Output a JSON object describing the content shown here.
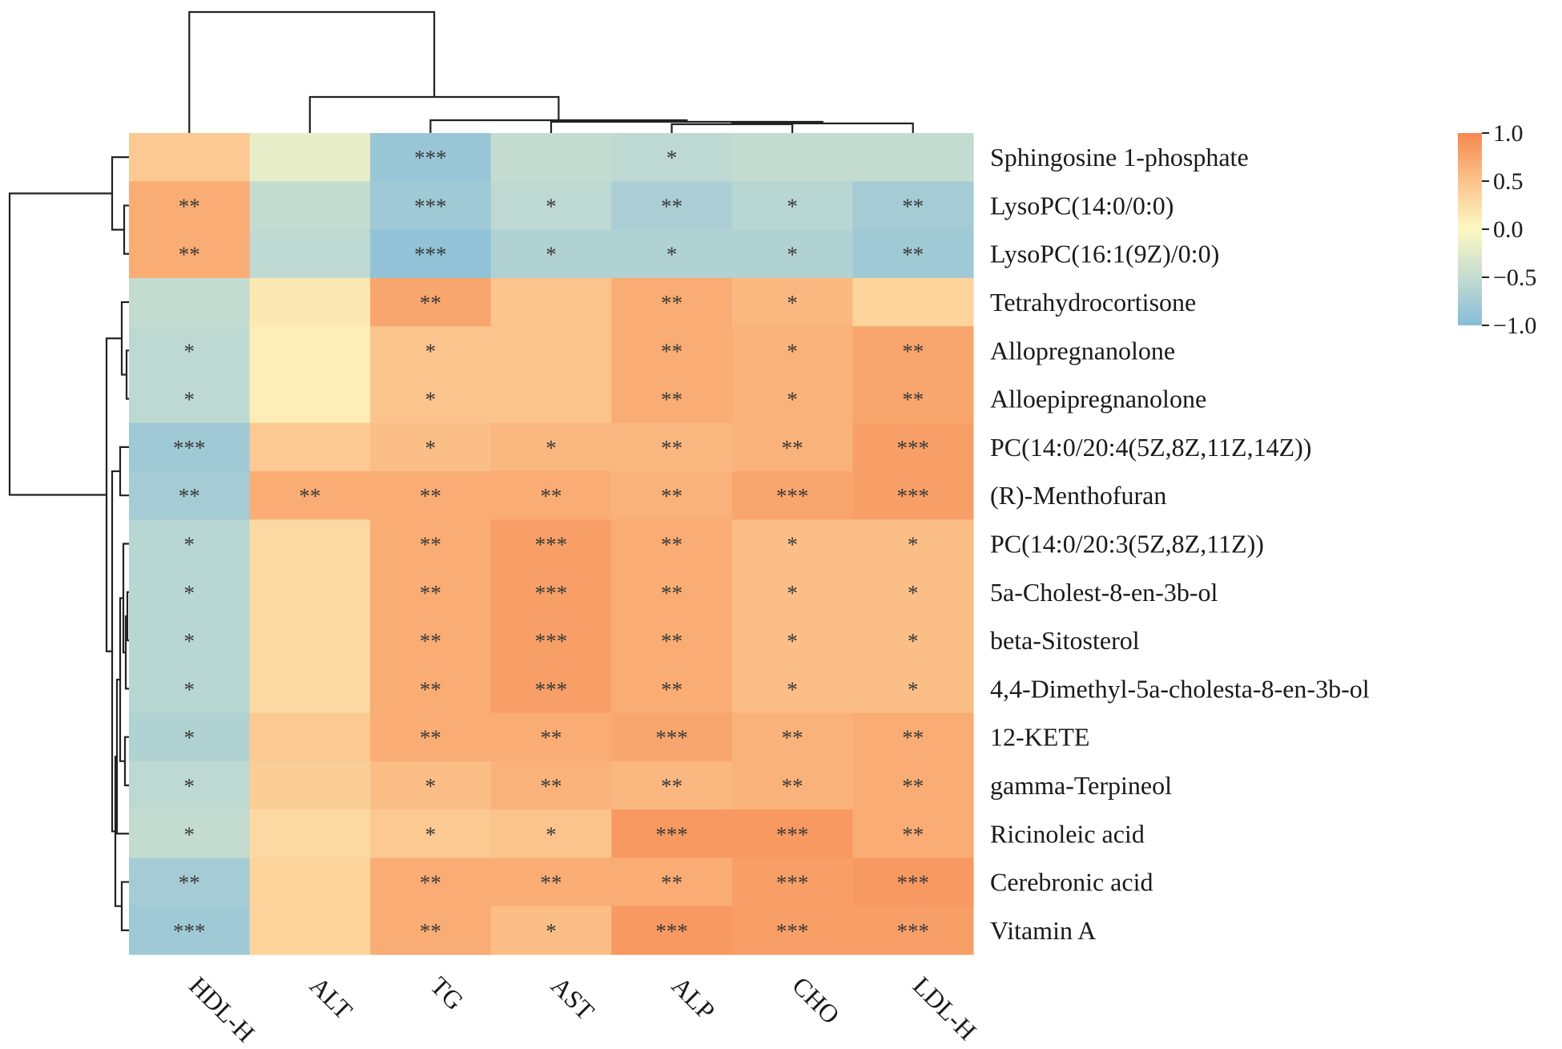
{
  "chart_data": {
    "type": "heatmap",
    "title": "",
    "columns": [
      "HDL-H",
      "ALT",
      "TG",
      "AST",
      "ALP",
      "CHO",
      "LDL-H"
    ],
    "rows": [
      "Sphingosine 1-phosphate",
      "LysoPC(14:0/0:0)",
      "LysoPC(16:1(9Z)/0:0)",
      "Tetrahydrocortisone",
      "Allopregnanolone",
      "Alloepipregnanolone",
      "PC(14:0/20:4(5Z,8Z,11Z,14Z))",
      "(R)-Menthofuran",
      "PC(14:0/20:3(5Z,8Z,11Z))",
      "5a-Cholest-8-en-3b-ol",
      "beta-Sitosterol",
      "4,4-Dimethyl-5a-cholesta-8-en-3b-ol",
      "12-KETE",
      "gamma-Terpineol",
      "Ricinoleic acid",
      "Cerebronic acid",
      "Vitamin A"
    ],
    "values": [
      [
        0.45,
        -0.2,
        -0.85,
        -0.5,
        -0.55,
        -0.5,
        -0.5
      ],
      [
        0.7,
        -0.5,
        -0.8,
        -0.55,
        -0.7,
        -0.6,
        -0.75
      ],
      [
        0.7,
        -0.55,
        -0.9,
        -0.65,
        -0.65,
        -0.65,
        -0.8
      ],
      [
        -0.5,
        0.15,
        0.75,
        0.5,
        0.7,
        0.6,
        0.35
      ],
      [
        -0.55,
        0.1,
        0.5,
        0.5,
        0.7,
        0.65,
        0.75
      ],
      [
        -0.55,
        0.1,
        0.5,
        0.5,
        0.7,
        0.65,
        0.75
      ],
      [
        -0.8,
        0.45,
        0.55,
        0.6,
        0.6,
        0.65,
        0.8
      ],
      [
        -0.75,
        0.7,
        0.7,
        0.7,
        0.65,
        0.75,
        0.8
      ],
      [
        -0.6,
        0.3,
        0.7,
        0.8,
        0.7,
        0.55,
        0.55
      ],
      [
        -0.6,
        0.3,
        0.7,
        0.8,
        0.7,
        0.55,
        0.55
      ],
      [
        -0.6,
        0.3,
        0.7,
        0.8,
        0.7,
        0.55,
        0.55
      ],
      [
        -0.6,
        0.3,
        0.7,
        0.8,
        0.7,
        0.55,
        0.55
      ],
      [
        -0.65,
        0.45,
        0.7,
        0.7,
        0.75,
        0.65,
        0.7
      ],
      [
        -0.55,
        0.4,
        0.55,
        0.65,
        0.6,
        0.65,
        0.7
      ],
      [
        -0.5,
        0.3,
        0.45,
        0.5,
        0.85,
        0.85,
        0.7
      ],
      [
        -0.75,
        0.35,
        0.7,
        0.7,
        0.7,
        0.8,
        0.85
      ],
      [
        -0.8,
        0.35,
        0.7,
        0.55,
        0.85,
        0.8,
        0.8
      ]
    ],
    "significance": [
      [
        "",
        "",
        "***",
        "",
        "*",
        "",
        ""
      ],
      [
        "**",
        "",
        "***",
        "*",
        "**",
        "*",
        "**"
      ],
      [
        "**",
        "",
        "***",
        "*",
        "*",
        "*",
        "**"
      ],
      [
        "",
        "",
        "**",
        "",
        "**",
        "*",
        ""
      ],
      [
        "*",
        "",
        "*",
        "",
        "**",
        "*",
        "**"
      ],
      [
        "*",
        "",
        "*",
        "",
        "**",
        "*",
        "**"
      ],
      [
        "***",
        "",
        "*",
        "*",
        "**",
        "**",
        "***"
      ],
      [
        "**",
        "**",
        "**",
        "**",
        "**",
        "***",
        "***"
      ],
      [
        "*",
        "",
        "**",
        "***",
        "**",
        "*",
        "*"
      ],
      [
        "*",
        "",
        "**",
        "***",
        "**",
        "*",
        "*"
      ],
      [
        "*",
        "",
        "**",
        "***",
        "**",
        "*",
        "*"
      ],
      [
        "*",
        "",
        "**",
        "***",
        "**",
        "*",
        "*"
      ],
      [
        "*",
        "",
        "**",
        "**",
        "***",
        "**",
        "**"
      ],
      [
        "*",
        "",
        "*",
        "**",
        "**",
        "**",
        "**"
      ],
      [
        "*",
        "",
        "*",
        "*",
        "***",
        "***",
        "**"
      ],
      [
        "**",
        "",
        "**",
        "**",
        "**",
        "***",
        "***"
      ],
      [
        "***",
        "",
        "**",
        "*",
        "***",
        "***",
        "***"
      ]
    ],
    "colorbar": {
      "range": [
        -1.0,
        1.0
      ],
      "ticks": [
        1.0,
        0.5,
        0.0,
        -0.5,
        -1.0
      ],
      "tick_labels": [
        "1.0",
        "0.5",
        "0.0",
        "−0.5",
        "−1.0"
      ]
    },
    "colors": {
      "low": "#86bcd9",
      "low_mid": "#c4dcd0",
      "mid": "#fdf8c2",
      "high_mid": "#fbc48c",
      "high": "#f5874e"
    }
  }
}
